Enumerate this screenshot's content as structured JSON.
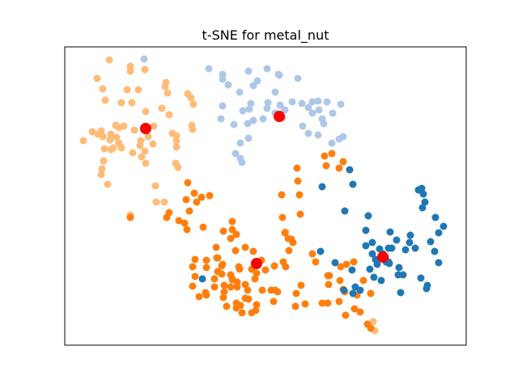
{
  "chart_data": {
    "type": "scatter",
    "title": "t-SNE for metal_nut",
    "xlabel": "",
    "ylabel": "",
    "xlim": [
      0,
      496
    ],
    "ylim": [
      0,
      369
    ],
    "grid": false,
    "axis_ticks": false,
    "legend": "none",
    "colors": {
      "cluster_blue": "#1f77b4",
      "cluster_light_blue": "#aec7e8",
      "cluster_orange": "#ff7f0e",
      "cluster_light_orange": "#ffbb78",
      "centroid": "#ff0000"
    },
    "series": [
      {
        "color": "#ffbb78",
        "points": [
          [
            55,
            353
          ],
          [
            81,
            345
          ],
          [
            81,
            339
          ],
          [
            99,
            341
          ],
          [
            125,
            325
          ],
          [
            124,
            320
          ],
          [
            40,
            330
          ],
          [
            47,
            317
          ],
          [
            77,
            316
          ],
          [
            91,
            316
          ],
          [
            127,
            312
          ],
          [
            152,
            311
          ],
          [
            156,
            306
          ],
          [
            159,
            298
          ],
          [
            50,
            303
          ],
          [
            70,
            300
          ],
          [
            83,
            300
          ],
          [
            100,
            289
          ],
          [
            120,
            293
          ],
          [
            129,
            285
          ],
          [
            63,
            272
          ],
          [
            67,
            269
          ],
          [
            73,
            271
          ],
          [
            45,
            265
          ],
          [
            57,
            261
          ],
          [
            86,
            266
          ],
          [
            99,
            270
          ],
          [
            110,
            271
          ],
          [
            157,
            272
          ],
          [
            158,
            267
          ],
          [
            133,
            262
          ],
          [
            138,
            259
          ],
          [
            138,
            253
          ],
          [
            41,
            261
          ],
          [
            34,
            264
          ],
          [
            23,
            253
          ],
          [
            47,
            258
          ],
          [
            56,
            254
          ],
          [
            64,
            257
          ],
          [
            67,
            250
          ],
          [
            94,
            253
          ],
          [
            103,
            258
          ],
          [
            109,
            249
          ],
          [
            138,
            245
          ],
          [
            60,
            244
          ],
          [
            70,
            244
          ],
          [
            84,
            238
          ],
          [
            48,
            228
          ],
          [
            49,
            243
          ],
          [
            99,
            240
          ],
          [
            93,
            247
          ],
          [
            57,
            242
          ],
          [
            100,
            225
          ],
          [
            95,
            233
          ],
          [
            46,
            218
          ],
          [
            137,
            225
          ],
          [
            140,
            220
          ],
          [
            45,
            211
          ],
          [
            53,
            199
          ],
          [
            112,
            197
          ],
          [
            123,
            177
          ],
          [
            113,
            177
          ],
          [
            81,
            161
          ],
          [
            273,
            140
          ],
          [
            381,
            29
          ],
          [
            383,
            18
          ]
        ]
      },
      {
        "color": "#aec7e8",
        "points": [
          [
            98,
            354
          ],
          [
            178,
            342
          ],
          [
            250,
            342
          ],
          [
            195,
            335
          ],
          [
            227,
            339
          ],
          [
            264,
            335
          ],
          [
            195,
            329
          ],
          [
            265,
            334
          ],
          [
            288,
            330
          ],
          [
            238,
            327
          ],
          [
            202,
            322
          ],
          [
            233,
            321
          ],
          [
            216,
            313
          ],
          [
            260,
            313
          ],
          [
            195,
            296
          ],
          [
            230,
            299
          ],
          [
            220,
            290
          ],
          [
            250,
            293
          ],
          [
            260,
            287
          ],
          [
            272,
            291
          ],
          [
            293,
            299
          ],
          [
            301,
            294
          ],
          [
            306,
            301
          ],
          [
            313,
            302
          ],
          [
            324,
            301
          ],
          [
            281,
            301
          ],
          [
            341,
            298
          ],
          [
            251,
            300
          ],
          [
            228,
            292
          ],
          [
            266,
            297
          ],
          [
            269,
            281
          ],
          [
            306,
            287
          ],
          [
            314,
            291
          ],
          [
            318,
            280
          ],
          [
            331,
            287
          ],
          [
            294,
            271
          ],
          [
            226,
            274
          ],
          [
            245,
            280
          ],
          [
            301,
            262
          ],
          [
            320,
            274
          ],
          [
            313,
            260
          ],
          [
            344,
            258
          ],
          [
            339,
            255
          ],
          [
            217,
            250
          ],
          [
            233,
            278
          ],
          [
            193,
            280
          ],
          [
            209,
            273
          ],
          [
            330,
            250
          ],
          [
            227,
            256
          ],
          [
            217,
            231
          ],
          [
            211,
            237
          ],
          [
            219,
            226
          ]
        ]
      },
      {
        "color": "#ff7f0e",
        "points": [
          [
            321,
            234
          ],
          [
            330,
            237
          ],
          [
            323,
            222
          ],
          [
            339,
            219
          ],
          [
            344,
            227
          ],
          [
            287,
            219
          ],
          [
            288,
            203
          ],
          [
            152,
            201
          ],
          [
            160,
            188
          ],
          [
            179,
            185
          ],
          [
            169,
            183
          ],
          [
            150,
            180
          ],
          [
            163,
            177
          ],
          [
            129,
            164
          ],
          [
            154,
            166
          ],
          [
            126,
            158
          ],
          [
            81,
            158
          ],
          [
            141,
            154
          ],
          [
            148,
            151
          ],
          [
            207,
            153
          ],
          [
            207,
            143
          ],
          [
            196,
            141
          ],
          [
            171,
            146
          ],
          [
            151,
            143
          ],
          [
            269,
            158
          ],
          [
            291,
            162
          ],
          [
            268,
            186
          ],
          [
            290,
            186
          ],
          [
            205,
            132
          ],
          [
            212,
            137
          ],
          [
            187,
            121
          ],
          [
            211,
            117
          ],
          [
            188,
            108
          ],
          [
            223,
            121
          ],
          [
            233,
            116
          ],
          [
            243,
            105
          ],
          [
            276,
            132
          ],
          [
            277,
            117
          ],
          [
            306,
            113
          ],
          [
            310,
            103
          ],
          [
            194,
            98
          ],
          [
            215,
            97
          ],
          [
            239,
            102
          ],
          [
            270,
            103
          ],
          [
            194,
            88
          ],
          [
            205,
            87
          ],
          [
            207,
            82
          ],
          [
            216,
            94
          ],
          [
            231,
            94
          ],
          [
            237,
            89
          ],
          [
            248,
            93
          ],
          [
            259,
            98
          ],
          [
            273,
            97
          ],
          [
            161,
            106
          ],
          [
            175,
            105
          ],
          [
            189,
            108
          ],
          [
            195,
            100
          ],
          [
            158,
            97
          ],
          [
            161,
            85
          ],
          [
            185,
            82
          ],
          [
            189,
            91
          ],
          [
            213,
            78
          ],
          [
            223,
            75
          ],
          [
            235,
            82
          ],
          [
            175,
            96
          ],
          [
            185,
            72
          ],
          [
            197,
            74
          ],
          [
            213,
            72
          ],
          [
            226,
            68
          ],
          [
            244,
            68
          ],
          [
            255,
            68
          ],
          [
            223,
            58
          ],
          [
            227,
            57
          ],
          [
            237,
            50
          ],
          [
            236,
            43
          ],
          [
            219,
            40
          ],
          [
            231,
            40
          ],
          [
            217,
            49
          ],
          [
            260,
            68
          ],
          [
            263,
            66
          ],
          [
            286,
            64
          ],
          [
            292,
            74
          ],
          [
            326,
            75
          ],
          [
            344,
            69
          ],
          [
            346,
            66
          ],
          [
            378,
            64
          ],
          [
            258,
            54
          ],
          [
            212,
            52
          ],
          [
            174,
            65
          ],
          [
            200,
            48
          ],
          [
            158,
            73
          ],
          [
            166,
            60
          ],
          [
            175,
            62
          ],
          [
            196,
            59
          ],
          [
            212,
            46
          ],
          [
            285,
            48
          ],
          [
            297,
            51
          ],
          [
            207,
            81
          ],
          [
            197,
            66
          ],
          [
            205,
            72
          ],
          [
            325,
            52
          ],
          [
            339,
            54
          ],
          [
            358,
            45
          ],
          [
            347,
            37
          ],
          [
            374,
            26
          ],
          [
            378,
            21
          ],
          [
            365,
            41
          ],
          [
            272,
            139
          ],
          [
            282,
            127
          ],
          [
            280,
            131
          ],
          [
            341,
            97
          ],
          [
            327,
            86
          ],
          [
            348,
            100
          ],
          [
            357,
            103
          ],
          [
            318,
            52
          ],
          [
            325,
            86
          ],
          [
            340,
            80
          ],
          [
            369,
            80
          ],
          [
            361,
            62
          ]
        ]
      },
      {
        "color": "#1f77b4",
        "points": [
          [
            352,
            217
          ],
          [
            356,
            199
          ],
          [
            318,
            196
          ],
          [
            441,
            194
          ],
          [
            437,
            192
          ],
          [
            443,
            187
          ],
          [
            445,
            177
          ],
          [
            442,
            170
          ],
          [
            375,
            160
          ],
          [
            346,
            166
          ],
          [
            458,
            158
          ],
          [
            468,
            147
          ],
          [
            462,
            139
          ],
          [
            452,
            128
          ],
          [
            457,
            116
          ],
          [
            410,
            130
          ],
          [
            400,
            120
          ],
          [
            426,
            127
          ],
          [
            402,
            140
          ],
          [
            372,
            142
          ],
          [
            380,
            127
          ],
          [
            372,
            123
          ],
          [
            380,
            113
          ],
          [
            384,
            106
          ],
          [
            386,
            100
          ],
          [
            393,
            113
          ],
          [
            389,
            119
          ],
          [
            397,
            103
          ],
          [
            427,
            136
          ],
          [
            433,
            120
          ],
          [
            404,
            120
          ],
          [
            421,
            118
          ],
          [
            413,
            96
          ],
          [
            418,
            87
          ],
          [
            440,
            83
          ],
          [
            462,
            102
          ],
          [
            412,
            87
          ],
          [
            401,
            101
          ],
          [
            391,
            80
          ],
          [
            382,
            84
          ],
          [
            377,
            94
          ],
          [
            355,
            93
          ],
          [
            359,
            72
          ],
          [
            356,
            64
          ],
          [
            345,
            68
          ],
          [
            365,
            68
          ],
          [
            316,
            116
          ],
          [
            334,
            102
          ],
          [
            415,
            65
          ],
          [
            448,
            74
          ],
          [
            447,
            70
          ],
          [
            170,
            82
          ],
          [
            400,
            103
          ],
          [
            396,
            109
          ]
        ]
      },
      {
        "color": "#ff0000",
        "marker": "centroid",
        "points": [
          [
            100,
            268
          ],
          [
            265,
            283
          ],
          [
            237,
            101
          ],
          [
            393,
            109
          ]
        ]
      }
    ]
  }
}
